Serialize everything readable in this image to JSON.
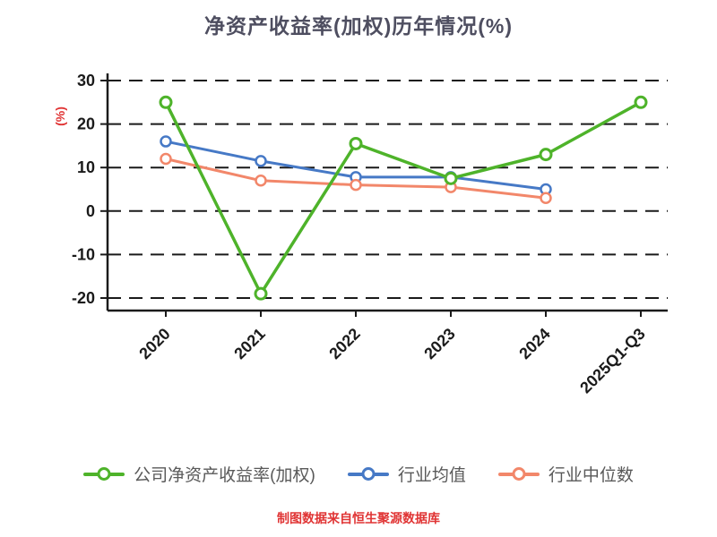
{
  "title": "净资产收益率(加权)历年情况(%)",
  "footer": "制图数据来自恒生聚源数据库",
  "colors": {
    "title": "#4e4e60",
    "axis": "#1a1a1a",
    "accent_red": "#e03434",
    "company": "#4eb32a",
    "industry_mean": "#4679c6",
    "industry_median": "#f2876a"
  },
  "chart_data": {
    "type": "line",
    "title": "净资产收益率(加权)历年情况(%)",
    "categories": [
      "2020",
      "2021",
      "2022",
      "2023",
      "2024",
      "2025Q1-Q3"
    ],
    "series": [
      {
        "name": "公司净资产收益率(加权)",
        "color": "#4eb32a",
        "values": [
          25,
          -19,
          15.5,
          7.5,
          13,
          25
        ]
      },
      {
        "name": "行业均值",
        "color": "#4679c6",
        "values": [
          16,
          11.5,
          7.8,
          7.8,
          5,
          null
        ]
      },
      {
        "name": "行业中位数",
        "color": "#f2876a",
        "values": [
          12,
          7,
          6,
          5.5,
          3,
          null
        ]
      }
    ],
    "xlabel": "",
    "ylabel": "(%)",
    "ylim": [
      -22,
      32
    ],
    "yticks": [
      30,
      20,
      10,
      0,
      -10,
      -20
    ],
    "grid": "dashed horizontal",
    "legend_position": "bottom",
    "marker": "open circle"
  }
}
